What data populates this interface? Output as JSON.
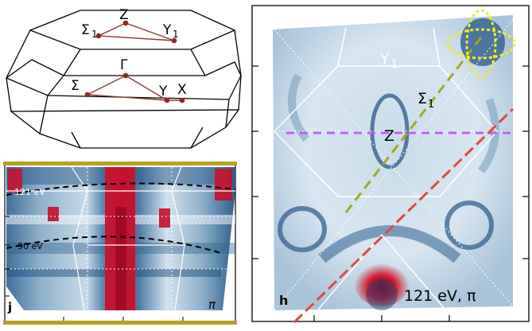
{
  "brillouin_zone": {
    "points": {
      "Z": "Z",
      "Sigma1": "Σ",
      "Sigma1_sub": "1",
      "Y1": "Y",
      "Y1_sub": "1",
      "Gamma": "Γ",
      "Sigma": "Σ",
      "Y": "Y",
      "X": "X"
    },
    "colors": {
      "edges": "#000000",
      "path": "#8b3a2e",
      "dots": "#8b2a22"
    }
  },
  "panel_j": {
    "label": "j",
    "pi_label": "π",
    "cut_labels": [
      "121 eV",
      "90 eV"
    ],
    "colors": {
      "bar": "#b5a21e",
      "high": "#c8102e",
      "low": "#dbe8f2"
    }
  },
  "panel_h": {
    "label": "h",
    "caption": "121 eV, π",
    "points": {
      "Y1": "Y",
      "Y1_sub": "1",
      "Sigma1": "Σ",
      "Sigma1_sub": "1",
      "Z": "Z"
    },
    "colors": {
      "magenta": "#c05cf0",
      "red": "#e04a3c",
      "olive": "#a3a81e",
      "yellow": "#f2ea2a"
    }
  }
}
